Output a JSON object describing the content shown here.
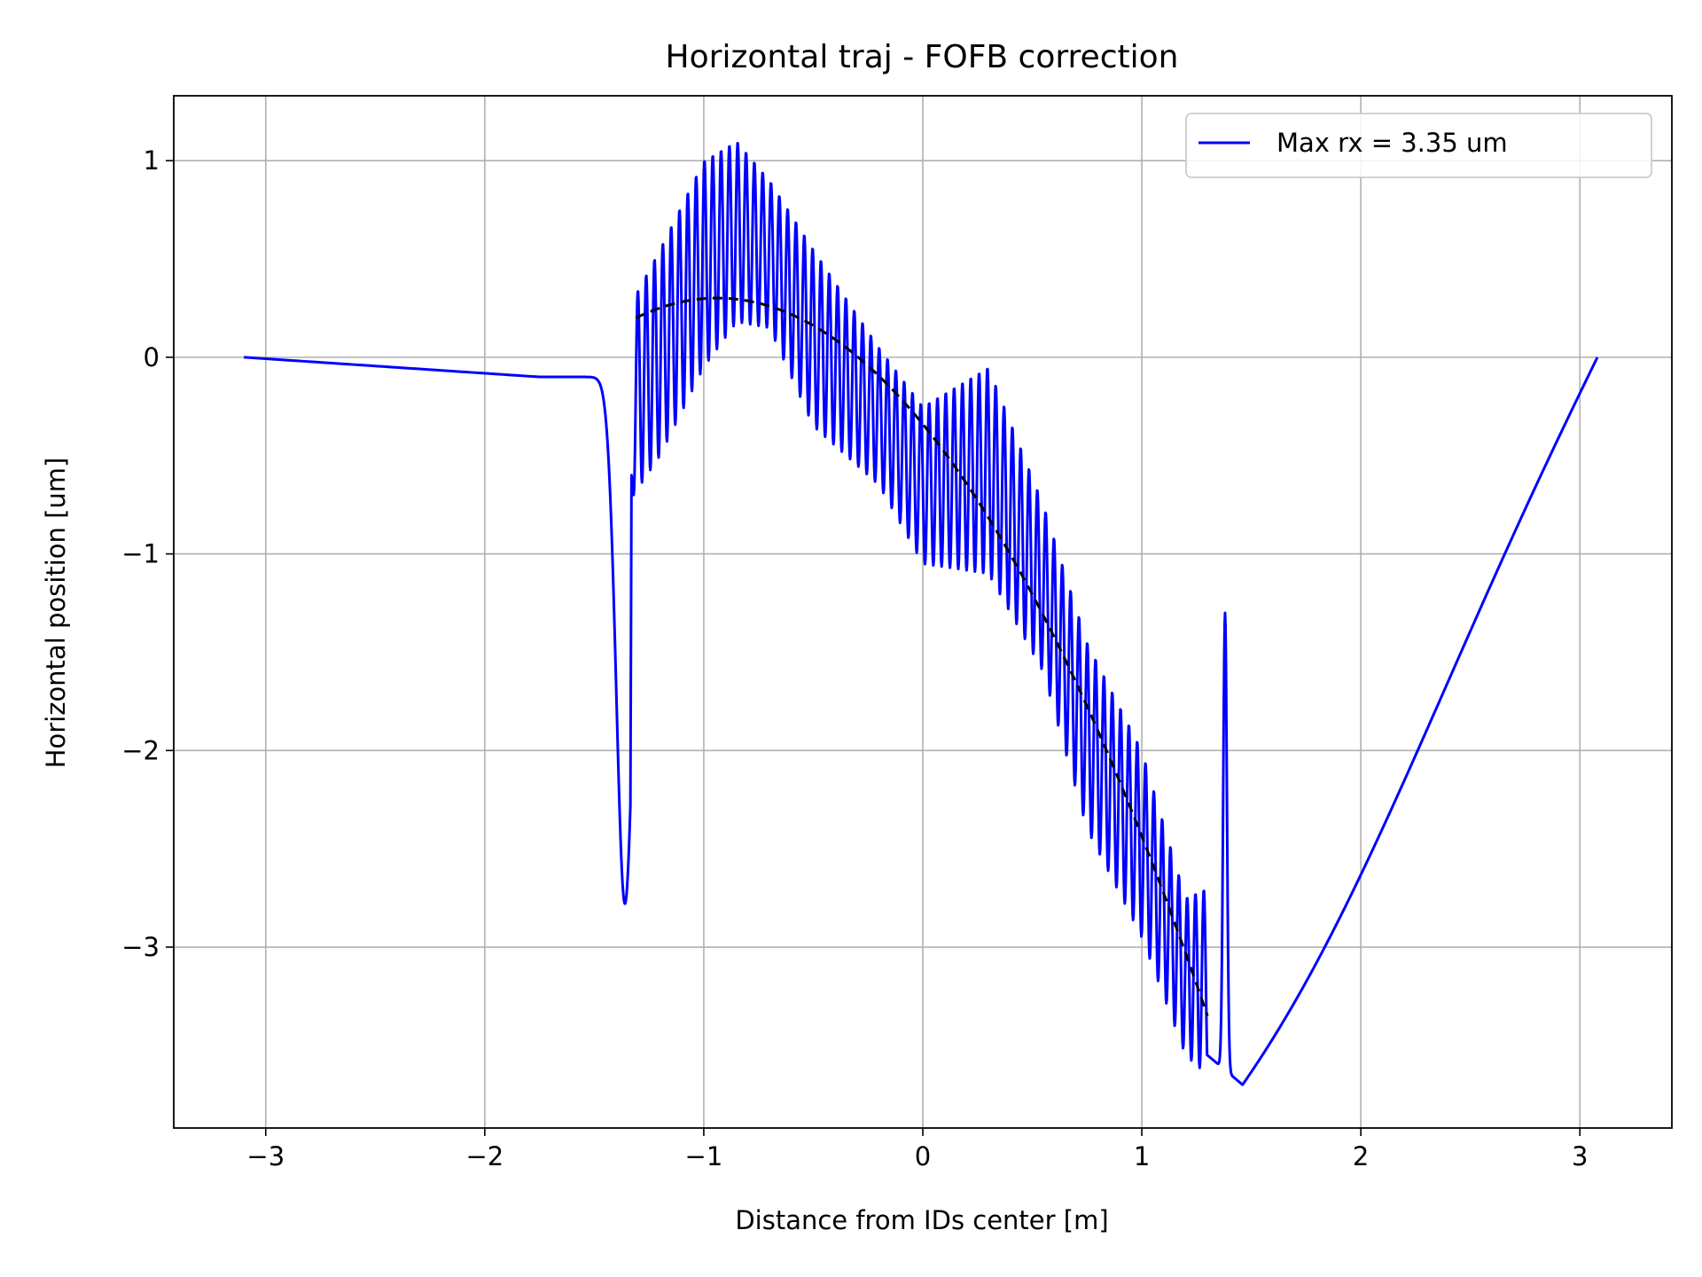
{
  "chart_data": {
    "type": "line",
    "title": "Horizontal traj - FOFB correction",
    "xlabel": "Distance from IDs center [m]",
    "ylabel": "Horizontal position [um]",
    "xlim": [
      -3.42,
      3.42
    ],
    "ylim": [
      -3.92,
      1.33
    ],
    "xticks": [
      {
        "value": -3,
        "label": "−3"
      },
      {
        "value": -2,
        "label": "−2"
      },
      {
        "value": -1,
        "label": "−1"
      },
      {
        "value": 0,
        "label": "0"
      },
      {
        "value": 1,
        "label": "1"
      },
      {
        "value": 2,
        "label": "2"
      },
      {
        "value": 3,
        "label": "3"
      }
    ],
    "yticks": [
      {
        "value": 1,
        "label": "1"
      },
      {
        "value": 0,
        "label": "0"
      },
      {
        "value": -1,
        "label": "−1"
      },
      {
        "value": -2,
        "label": "−2"
      },
      {
        "value": -3,
        "label": "−3"
      }
    ],
    "grid": true,
    "legend_position": "top-right",
    "series": [
      {
        "name": "Max rx = 3.35 um",
        "color": "#0000ff",
        "style": "solid",
        "model": {
          "start": [
            -3.1,
            0.0
          ],
          "drift_end": [
            -1.75,
            -0.1
          ],
          "dip_center": -1.36,
          "dip_min": -2.78,
          "oscillation_range": [
            -1.32,
            1.3
          ],
          "oscillation_period": 0.038,
          "envelope_upper_points": [
            [
              -1.32,
              0.3
            ],
            [
              -1.2,
              0.55
            ],
            [
              -1.0,
              1.0
            ],
            [
              -0.85,
              1.1
            ],
            [
              -0.7,
              0.9
            ],
            [
              -0.5,
              0.55
            ],
            [
              -0.2,
              0.05
            ],
            [
              0.0,
              -0.25
            ],
            [
              0.3,
              -0.05
            ],
            [
              0.55,
              -0.75
            ],
            [
              0.75,
              -1.45
            ],
            [
              1.0,
              -2.0
            ],
            [
              1.2,
              -2.75
            ],
            [
              1.3,
              -2.7
            ]
          ],
          "envelope_lower_points": [
            [
              -1.32,
              -0.7
            ],
            [
              -1.2,
              -0.5
            ],
            [
              -1.0,
              -0.05
            ],
            [
              -0.85,
              0.18
            ],
            [
              -0.7,
              0.15
            ],
            [
              -0.5,
              -0.35
            ],
            [
              -0.2,
              -0.65
            ],
            [
              0.0,
              -1.05
            ],
            [
              0.3,
              -1.1
            ],
            [
              0.55,
              -1.6
            ],
            [
              0.75,
              -2.4
            ],
            [
              1.0,
              -2.95
            ],
            [
              1.2,
              -3.55
            ],
            [
              1.3,
              -3.65
            ]
          ],
          "spike": [
            1.38,
            -1.3
          ],
          "minimum": [
            1.46,
            -3.7
          ],
          "end": [
            3.08,
            0.0
          ]
        }
      },
      {
        "name": "",
        "color": "#000000",
        "style": "dashed",
        "model": {
          "quadratic_points": [
            [
              -1.31,
              0.2
            ],
            [
              -0.9,
              0.3
            ],
            [
              1.3,
              -3.35
            ]
          ]
        }
      }
    ]
  }
}
